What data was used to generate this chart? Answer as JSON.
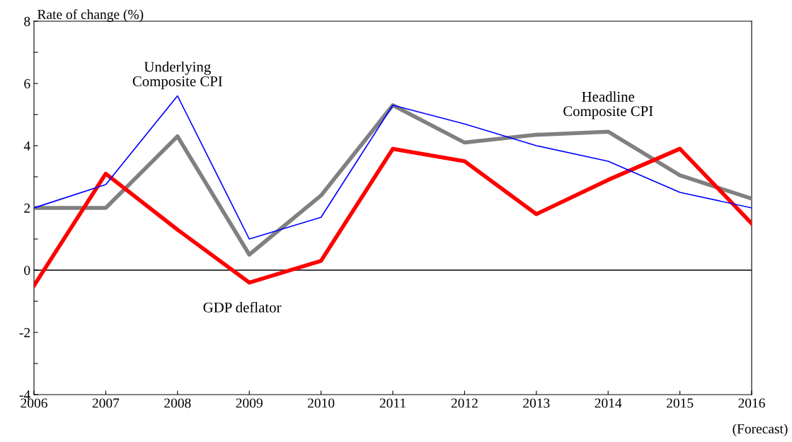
{
  "chart_data": {
    "type": "line",
    "ylabel": "Rate of change (%)",
    "x": [
      2006,
      2007,
      2008,
      2009,
      2010,
      2011,
      2012,
      2013,
      2014,
      2015,
      2016
    ],
    "series": [
      {
        "color": "#0000ff",
        "values": [
          2.0,
          2.75,
          5.6,
          1.0,
          1.7,
          5.3,
          4.7,
          4.0,
          3.5,
          2.5,
          2.0
        ]
      },
      {
        "color": "#808080",
        "values": [
          2.0,
          2.0,
          4.3,
          0.5,
          2.4,
          5.3,
          4.1,
          4.35,
          4.45,
          3.05,
          2.3
        ]
      },
      {
        "color": "#ff0000",
        "values": [
          -0.5,
          3.1,
          1.3,
          -0.4,
          0.3,
          3.9,
          3.5,
          1.8,
          2.9,
          3.9,
          1.5
        ]
      }
    ],
    "xlim": [
      2006,
      2016
    ],
    "xticks": [
      2006,
      2007,
      2008,
      2009,
      2010,
      2011,
      2012,
      2013,
      2014,
      2015,
      2016
    ],
    "ylim": [
      -4,
      8
    ],
    "yticks": [
      -4,
      {
        "value": -3,
        "label": null
      },
      -2,
      {
        "value": -1,
        "label": null
      },
      0,
      {
        "value": 1,
        "label": null
      },
      2,
      {
        "value": 3,
        "label": null
      },
      4,
      {
        "value": 5,
        "label": null
      },
      6,
      {
        "value": 7,
        "label": null
      },
      8
    ],
    "ref_lines": [
      {
        "axis": "y",
        "value": 0,
        "color": "#000000"
      }
    ],
    "annotations": [
      "Underlying\nComposite CPI",
      "Headline\nComposite CPI",
      "GDP deflator",
      "(Forecast)"
    ],
    "grid": false,
    "legend": false,
    "marker": "none",
    "line_style": "solid"
  }
}
